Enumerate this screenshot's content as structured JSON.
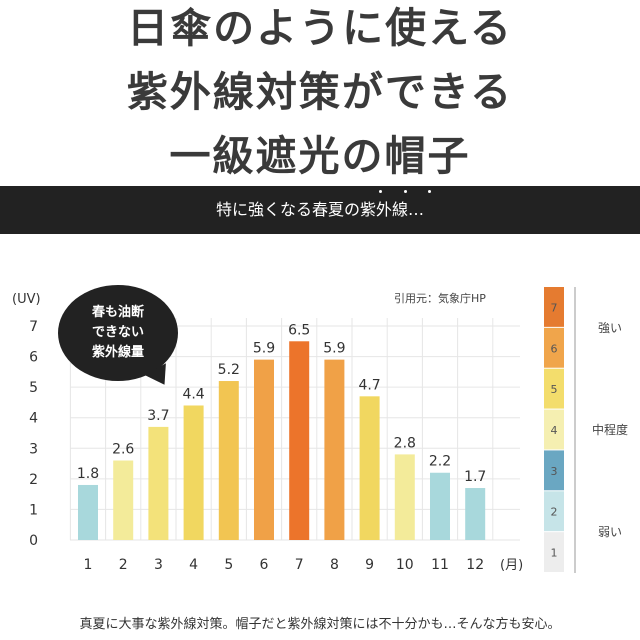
{
  "headline": {
    "line1": "日傘のように使える",
    "line2": "紫外線対策ができる",
    "line3": "一級遮光の帽子"
  },
  "banner": {
    "text": "特に強くなる春夏の紫外線…"
  },
  "bubble": {
    "line1": "春も油断",
    "line2": "できない",
    "line3": "紫外線量"
  },
  "source": "引用元：気象庁HP",
  "footer": "真夏に大事な紫外線対策。帽子だと紫外線対策には不十分かも…そんな方も安心。",
  "chart_data": {
    "type": "bar",
    "categories": [
      "1",
      "2",
      "3",
      "4",
      "5",
      "6",
      "7",
      "8",
      "9",
      "10",
      "11",
      "12"
    ],
    "values": [
      1.8,
      2.6,
      3.7,
      4.4,
      5.2,
      5.9,
      6.5,
      5.9,
      4.7,
      2.8,
      2.2,
      1.7
    ],
    "ylabel": "(UV)",
    "xlabel": "(月)",
    "ylim": [
      0,
      7
    ],
    "yticks": [
      "0",
      "1",
      "2",
      "3",
      "4",
      "5",
      "6",
      "7"
    ],
    "grid": true,
    "legend": "none",
    "bar_colors": [
      "#a8d8dc",
      "#f3eb9a",
      "#f3e27a",
      "#f1d760",
      "#f2c552",
      "#f0a147",
      "#ec742b",
      "#f0a147",
      "#f1d760",
      "#f3eb9a",
      "#a8d8dc",
      "#a8d8dc"
    ],
    "uv_scale": {
      "levels": [
        {
          "label": "7",
          "color": "#e57b30"
        },
        {
          "label": "6",
          "color": "#f0a54b"
        },
        {
          "label": "5",
          "color": "#f3dd6c"
        },
        {
          "label": "4",
          "color": "#f5efb1"
        },
        {
          "label": "3",
          "color": "#6aa7c2"
        },
        {
          "label": "2",
          "color": "#c6e4e8"
        },
        {
          "label": "1",
          "color": "#ededed"
        }
      ],
      "categories": [
        {
          "label": "強い",
          "from": 6,
          "to": 7
        },
        {
          "label": "中程度",
          "from": 3,
          "to": 5
        },
        {
          "label": "弱い",
          "from": 1,
          "to": 2
        }
      ]
    }
  }
}
